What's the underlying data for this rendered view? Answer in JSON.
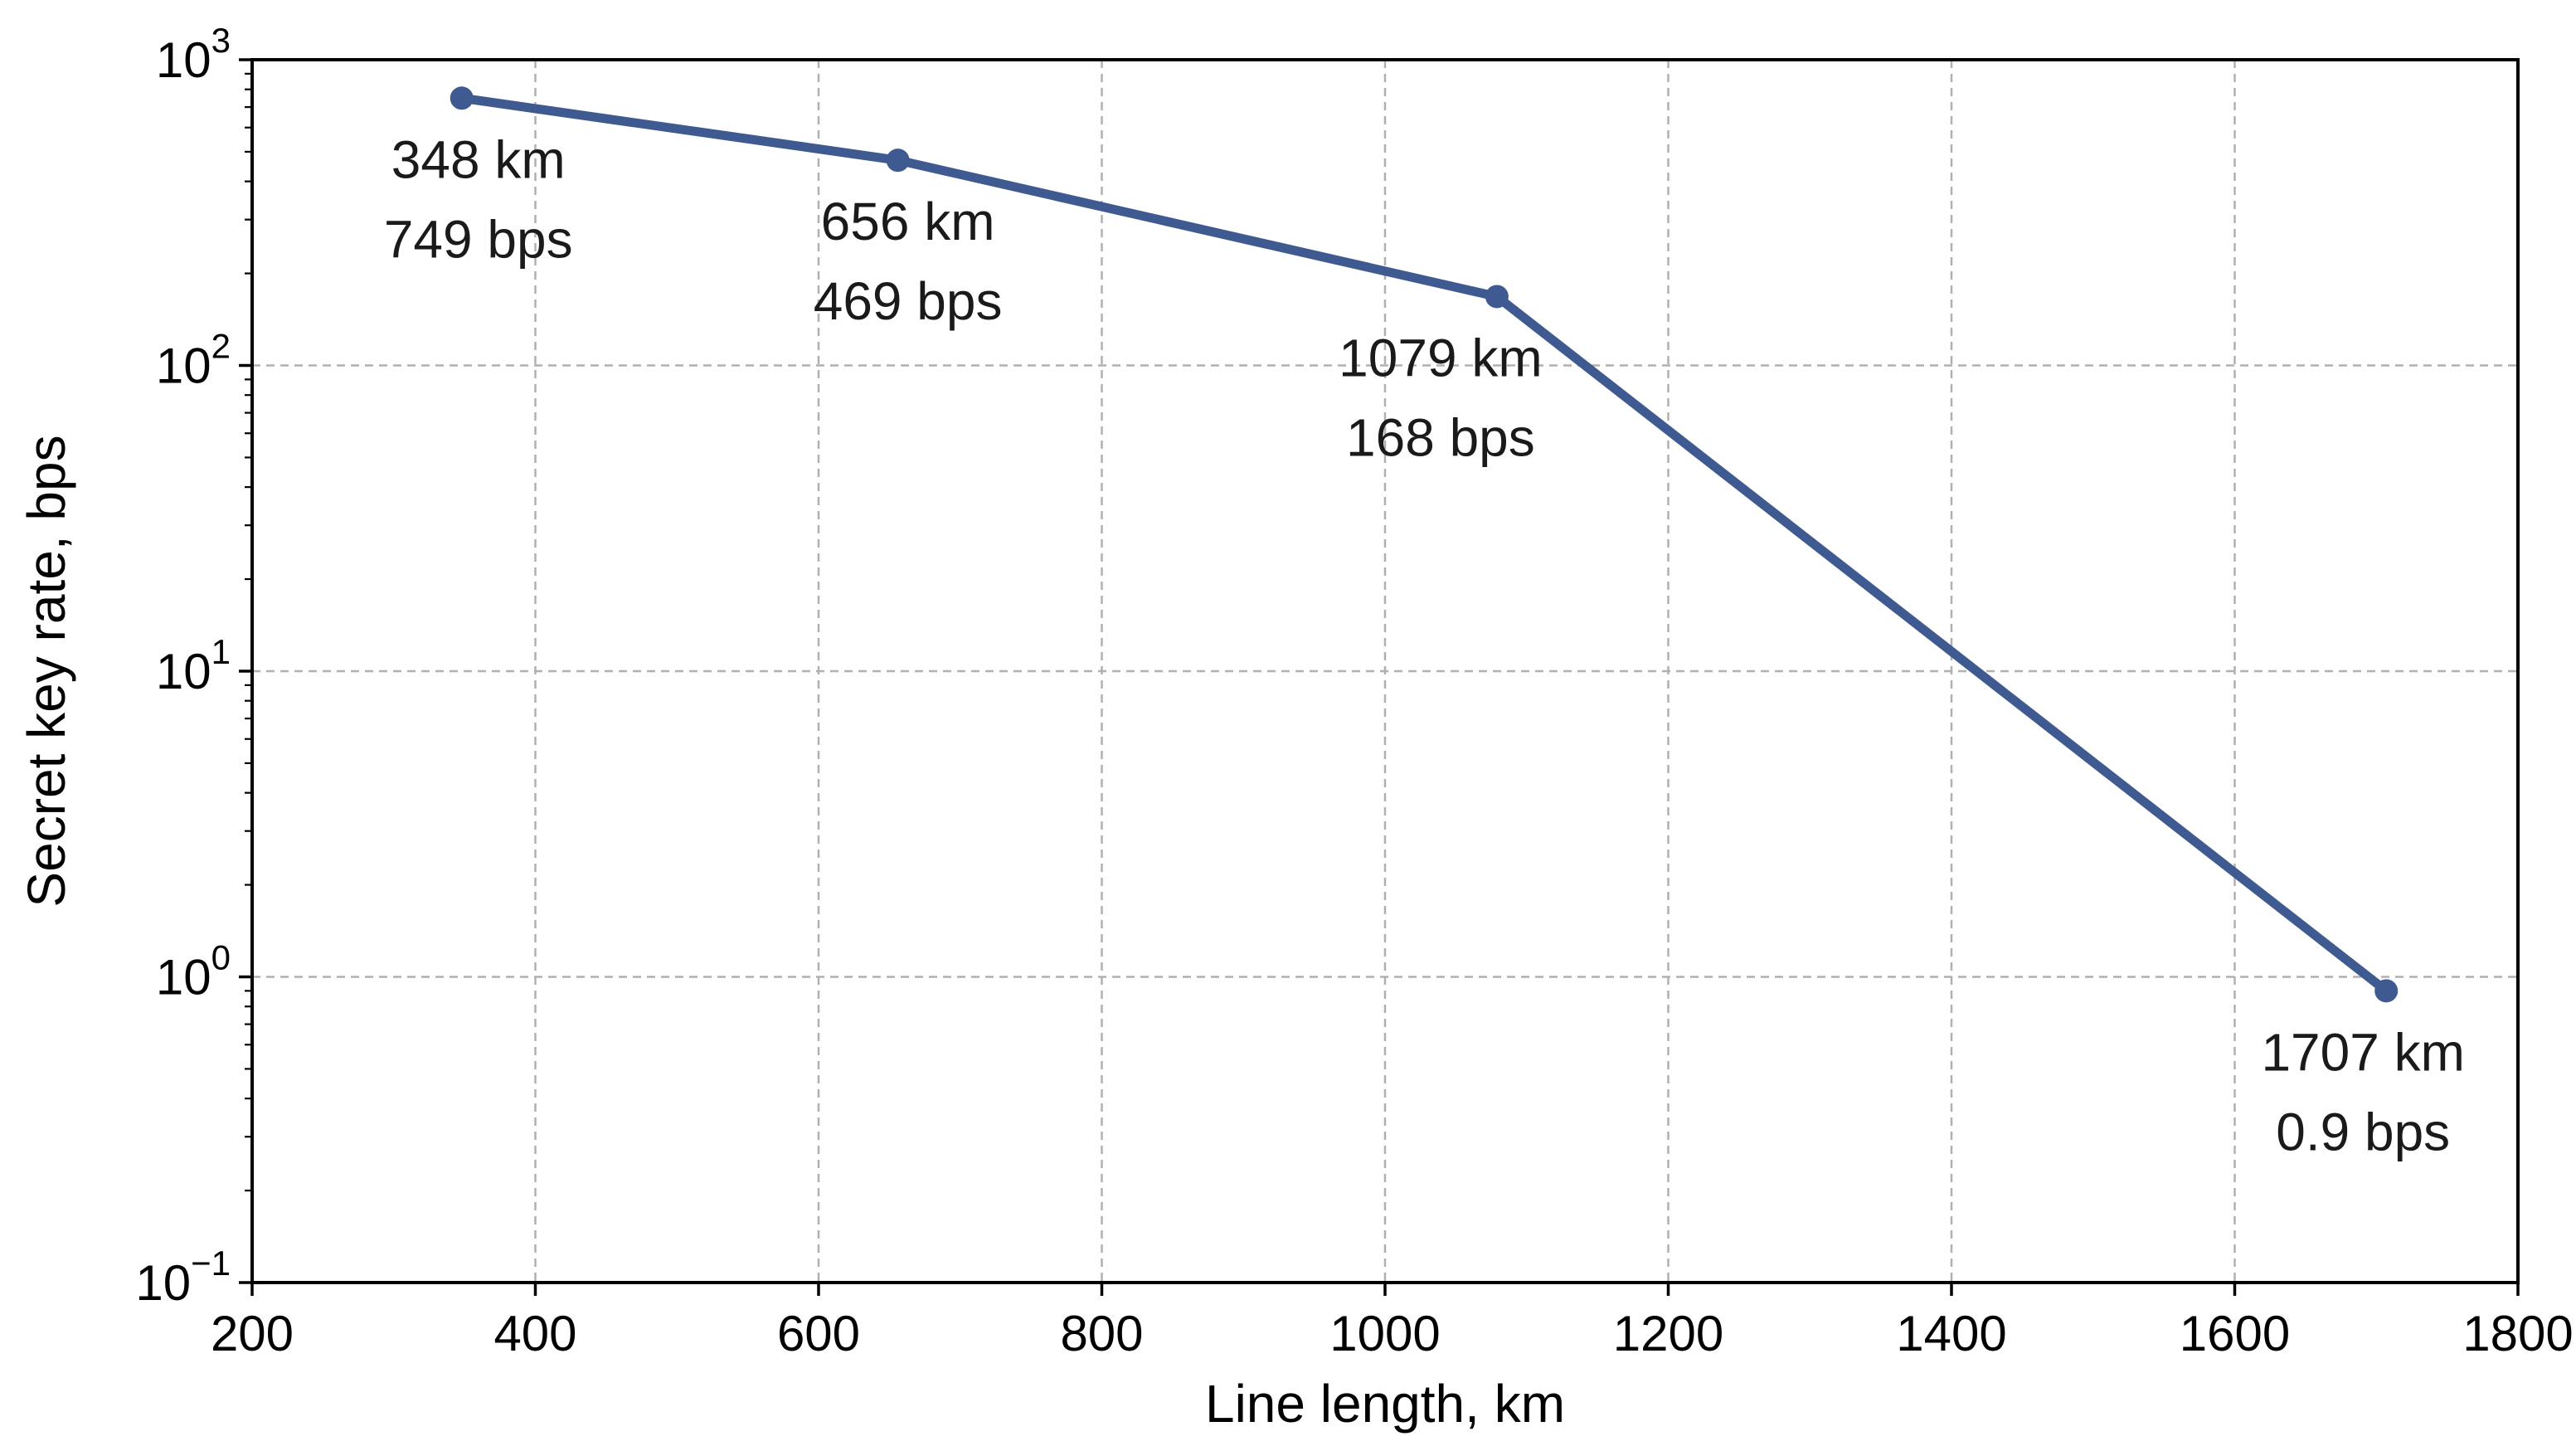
{
  "chart_data": {
    "type": "line",
    "title": "",
    "xlabel": "Line length, km",
    "ylabel": "Secret key rate, bps",
    "xscale": "linear",
    "yscale": "log",
    "xlim": [
      200,
      1800
    ],
    "ylim": [
      0.1,
      1000
    ],
    "grid": true,
    "x_ticks": [
      200,
      400,
      600,
      800,
      1000,
      1200,
      1400,
      1600,
      1800
    ],
    "x_tick_labels": [
      "200",
      "400",
      "600",
      "800",
      "1000",
      "1200",
      "1400",
      "1600",
      "1800"
    ],
    "y_ticks": [
      {
        "value": 0.1,
        "base": "10",
        "exp": "−1"
      },
      {
        "value": 1,
        "base": "10",
        "exp": "0"
      },
      {
        "value": 10,
        "base": "10",
        "exp": "1"
      },
      {
        "value": 100,
        "base": "10",
        "exp": "2"
      },
      {
        "value": 1000,
        "base": "10",
        "exp": "3"
      }
    ],
    "series": [
      {
        "name": "Secret key rate",
        "color": "#3f5a91",
        "x": [
          348,
          656,
          1079,
          1707
        ],
        "y": [
          749,
          469,
          168,
          0.9
        ]
      }
    ],
    "annotations": [
      {
        "line1": "348 km",
        "line2": "749 bps"
      },
      {
        "line1": "656 km",
        "line2": "469 bps"
      },
      {
        "line1": "1079 km",
        "line2": "168 bps"
      },
      {
        "line1": "1707 km",
        "line2": "0.9 bps"
      }
    ]
  }
}
